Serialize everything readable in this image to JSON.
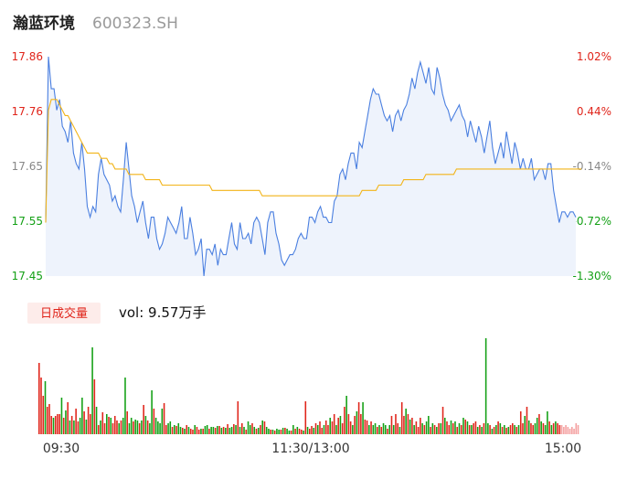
{
  "header": {
    "name": "瀚蓝环境",
    "code": "600323.SH"
  },
  "volume_panel": {
    "badge": "日成交量",
    "summary": "vol: 9.57万手"
  },
  "colors": {
    "price_line": "#4a7fe0",
    "avg_line": "#f2b418",
    "area_fill": "#eef3fc",
    "up": "#e0251b",
    "down": "#13a015",
    "flat": "#888888",
    "badge_bg": "#fdecea"
  },
  "chart_data": [
    {
      "type": "line",
      "title": "",
      "x_ticks": [
        "09:30",
        "11:30/13:00",
        "15:00"
      ],
      "y_ticks_left": [
        "17.86",
        "17.76",
        "17.65",
        "17.55",
        "17.45"
      ],
      "y_ticks_right": [
        "1.02%",
        "0.44%",
        "-0.14%",
        "-0.72%",
        "-1.30%"
      ],
      "ylim": [
        17.45,
        17.86
      ],
      "prev_close": 17.675,
      "series": [
        {
          "role": "price",
          "values": [
            17.55,
            17.86,
            17.8,
            17.8,
            17.76,
            17.78,
            17.73,
            17.72,
            17.7,
            17.74,
            17.68,
            17.66,
            17.65,
            17.7,
            17.65,
            17.58,
            17.56,
            17.58,
            17.57,
            17.64,
            17.67,
            17.64,
            17.63,
            17.62,
            17.59,
            17.6,
            17.58,
            17.57,
            17.63,
            17.7,
            17.65,
            17.6,
            17.58,
            17.55,
            17.57,
            17.59,
            17.55,
            17.52,
            17.56,
            17.56,
            17.52,
            17.5,
            17.51,
            17.53,
            17.56,
            17.55,
            17.54,
            17.53,
            17.55,
            17.58,
            17.52,
            17.52,
            17.56,
            17.53,
            17.49,
            17.5,
            17.52,
            17.45,
            17.5,
            17.5,
            17.49,
            17.51,
            17.47,
            17.5,
            17.49,
            17.49,
            17.52,
            17.55,
            17.51,
            17.5,
            17.55,
            17.52,
            17.52,
            17.53,
            17.51,
            17.55,
            17.56,
            17.55,
            17.52,
            17.49,
            17.55,
            17.57,
            17.57,
            17.53,
            17.51,
            17.48,
            17.47,
            17.48,
            17.49,
            17.49,
            17.5,
            17.52,
            17.53,
            17.52,
            17.52,
            17.56,
            17.56,
            17.55,
            17.57,
            17.58,
            17.56,
            17.56,
            17.55,
            17.55,
            17.59,
            17.6,
            17.64,
            17.65,
            17.63,
            17.66,
            17.68,
            17.68,
            17.65,
            17.7,
            17.69,
            17.72,
            17.75,
            17.78,
            17.8,
            17.79,
            17.79,
            17.77,
            17.75,
            17.74,
            17.75,
            17.72,
            17.75,
            17.76,
            17.74,
            17.76,
            17.77,
            17.79,
            17.82,
            17.8,
            17.83,
            17.85,
            17.83,
            17.81,
            17.84,
            17.8,
            17.79,
            17.84,
            17.82,
            17.79,
            17.77,
            17.76,
            17.74,
            17.75,
            17.76,
            17.77,
            17.75,
            17.74,
            17.71,
            17.74,
            17.72,
            17.7,
            17.73,
            17.71,
            17.68,
            17.71,
            17.74,
            17.69,
            17.66,
            17.68,
            17.7,
            17.67,
            17.72,
            17.69,
            17.66,
            17.7,
            17.68,
            17.65,
            17.67,
            17.65,
            17.65,
            17.67,
            17.63,
            17.64,
            17.65,
            17.65,
            17.63,
            17.66,
            17.66,
            17.61,
            17.58,
            17.55,
            17.57,
            17.57,
            17.56,
            17.57,
            17.57,
            17.56
          ]
        },
        {
          "role": "average",
          "values": [
            17.55,
            17.76,
            17.78,
            17.78,
            17.78,
            17.77,
            17.76,
            17.75,
            17.75,
            17.74,
            17.73,
            17.72,
            17.71,
            17.7,
            17.69,
            17.68,
            17.68,
            17.68,
            17.68,
            17.68,
            17.67,
            17.67,
            17.67,
            17.66,
            17.66,
            17.65,
            17.65,
            17.65,
            17.65,
            17.65,
            17.64,
            17.64,
            17.64,
            17.64,
            17.64,
            17.64,
            17.63,
            17.63,
            17.63,
            17.63,
            17.63,
            17.63,
            17.62,
            17.62,
            17.62,
            17.62,
            17.62,
            17.62,
            17.62,
            17.62,
            17.62,
            17.62,
            17.62,
            17.62,
            17.62,
            17.62,
            17.62,
            17.62,
            17.62,
            17.62,
            17.61,
            17.61,
            17.61,
            17.61,
            17.61,
            17.61,
            17.61,
            17.61,
            17.61,
            17.61,
            17.61,
            17.61,
            17.61,
            17.61,
            17.61,
            17.61,
            17.61,
            17.61,
            17.6,
            17.6,
            17.6,
            17.6,
            17.6,
            17.6,
            17.6,
            17.6,
            17.6,
            17.6,
            17.6,
            17.6,
            17.6,
            17.6,
            17.6,
            17.6,
            17.6,
            17.6,
            17.6,
            17.6,
            17.6,
            17.6,
            17.6,
            17.6,
            17.6,
            17.6,
            17.6,
            17.6,
            17.6,
            17.6,
            17.6,
            17.6,
            17.6,
            17.6,
            17.6,
            17.6,
            17.61,
            17.61,
            17.61,
            17.61,
            17.61,
            17.61,
            17.62,
            17.62,
            17.62,
            17.62,
            17.62,
            17.62,
            17.62,
            17.62,
            17.62,
            17.63,
            17.63,
            17.63,
            17.63,
            17.63,
            17.63,
            17.63,
            17.63,
            17.64,
            17.64,
            17.64,
            17.64,
            17.64,
            17.64,
            17.64,
            17.64,
            17.64,
            17.64,
            17.64,
            17.65,
            17.65,
            17.65,
            17.65,
            17.65,
            17.65,
            17.65,
            17.65,
            17.65,
            17.65,
            17.65,
            17.65,
            17.65,
            17.65,
            17.65,
            17.65,
            17.65,
            17.65,
            17.65,
            17.65,
            17.65,
            17.65,
            17.65,
            17.65,
            17.65,
            17.65,
            17.65,
            17.65,
            17.65,
            17.65,
            17.65,
            17.65,
            17.65,
            17.65,
            17.65,
            17.65,
            17.65,
            17.65,
            17.65,
            17.65,
            17.65,
            17.65,
            17.65,
            17.65,
            17.65,
            17.65
          ]
        }
      ]
    },
    {
      "type": "bar",
      "title": "",
      "series": [
        {
          "name": "vol",
          "values": [
            0.78,
            0.62,
            0.42,
            0.58,
            0.3,
            0.33,
            0.2,
            0.18,
            0.2,
            0.22,
            0.22,
            0.4,
            0.18,
            0.26,
            0.35,
            0.15,
            0.2,
            0.15,
            0.28,
            0.14,
            0.18,
            0.4,
            0.25,
            0.16,
            0.3,
            0.22,
            0.95,
            0.6,
            0.3,
            0.1,
            0.15,
            0.24,
            0.12,
            0.22,
            0.19,
            0.18,
            0.12,
            0.2,
            0.15,
            0.12,
            0.15,
            0.18,
            0.62,
            0.25,
            0.12,
            0.18,
            0.14,
            0.16,
            0.15,
            0.12,
            0.15,
            0.32,
            0.2,
            0.15,
            0.12,
            0.48,
            0.28,
            0.18,
            0.14,
            0.12,
            0.28,
            0.34,
            0.1,
            0.12,
            0.14,
            0.08,
            0.1,
            0.09,
            0.12,
            0.08,
            0.07,
            0.06,
            0.1,
            0.08,
            0.06,
            0.05,
            0.1,
            0.08,
            0.05,
            0.06,
            0.06,
            0.09,
            0.1,
            0.06,
            0.08,
            0.08,
            0.07,
            0.09,
            0.09,
            0.07,
            0.08,
            0.07,
            0.11,
            0.07,
            0.08,
            0.11,
            0.1,
            0.36,
            0.08,
            0.12,
            0.08,
            0.05,
            0.14,
            0.1,
            0.12,
            0.08,
            0.06,
            0.07,
            0.1,
            0.15,
            0.14,
            0.08,
            0.06,
            0.05,
            0.05,
            0.04,
            0.06,
            0.05,
            0.05,
            0.07,
            0.07,
            0.06,
            0.04,
            0.04,
            0.1,
            0.06,
            0.08,
            0.06,
            0.05,
            0.04,
            0.36,
            0.08,
            0.06,
            0.09,
            0.07,
            0.12,
            0.1,
            0.14,
            0.07,
            0.1,
            0.15,
            0.1,
            0.18,
            0.14,
            0.22,
            0.1,
            0.18,
            0.2,
            0.12,
            0.3,
            0.42,
            0.22,
            0.14,
            0.1,
            0.2,
            0.25,
            0.35,
            0.22,
            0.35,
            0.16,
            0.15,
            0.1,
            0.14,
            0.1,
            0.12,
            0.08,
            0.1,
            0.08,
            0.12,
            0.1,
            0.06,
            0.1,
            0.2,
            0.1,
            0.22,
            0.12,
            0.08,
            0.35,
            0.2,
            0.28,
            0.22,
            0.16,
            0.18,
            0.1,
            0.14,
            0.08,
            0.18,
            0.12,
            0.1,
            0.14,
            0.2,
            0.08,
            0.12,
            0.1,
            0.08,
            0.12,
            0.12,
            0.3,
            0.18,
            0.14,
            0.1,
            0.15,
            0.12,
            0.14,
            0.08,
            0.12,
            0.1,
            0.18,
            0.16,
            0.14,
            0.1,
            0.1,
            0.12,
            0.14,
            0.08,
            0.1,
            0.08,
            0.12,
            1.05,
            0.12,
            0.1,
            0.06,
            0.08,
            0.1,
            0.14,
            0.12,
            0.08,
            0.1,
            0.07,
            0.08,
            0.1,
            0.12,
            0.1,
            0.08,
            0.1,
            0.25,
            0.12,
            0.2,
            0.3,
            0.15,
            0.12,
            0.1,
            0.12,
            0.18,
            0.22,
            0.14,
            0.12,
            0.1,
            0.25,
            0.14,
            0.1,
            0.12,
            0.14,
            0.12,
            0.1,
            0.1,
            0.08,
            0.1,
            0.08,
            0.06,
            0.08,
            0.06,
            0.12,
            0.1
          ]
        }
      ],
      "colors": [
        "r",
        "r",
        "r",
        "g",
        "r",
        "r",
        "r",
        "g",
        "r",
        "r",
        "r",
        "g",
        "r",
        "g",
        "r",
        "g",
        "r",
        "g",
        "r",
        "r",
        "g",
        "g",
        "r",
        "g",
        "r",
        "r",
        "g",
        "r",
        "g",
        "r",
        "g",
        "r",
        "r",
        "g",
        "r",
        "g",
        "r",
        "r",
        "r",
        "g",
        "r",
        "g",
        "g",
        "r",
        "g",
        "g",
        "r",
        "g",
        "g",
        "r",
        "g",
        "r",
        "g",
        "r",
        "g",
        "g",
        "r",
        "g",
        "g",
        "g",
        "g",
        "r",
        "r",
        "g",
        "g",
        "r",
        "g",
        "r",
        "g",
        "g",
        "r",
        "g",
        "r",
        "g",
        "r",
        "r",
        "g",
        "r",
        "r",
        "g",
        "r",
        "g",
        "g",
        "r",
        "g",
        "g",
        "r",
        "g",
        "r",
        "g",
        "r",
        "g",
        "r",
        "g",
        "g",
        "r",
        "g",
        "r",
        "g",
        "r",
        "g",
        "r",
        "g",
        "g",
        "r",
        "g",
        "r",
        "g",
        "r",
        "g",
        "r",
        "g",
        "g",
        "r",
        "g",
        "r",
        "g",
        "g",
        "r",
        "g",
        "r",
        "g",
        "g",
        "r",
        "g",
        "r",
        "g",
        "r",
        "r",
        "g",
        "r",
        "g",
        "r",
        "r",
        "g",
        "r",
        "g",
        "r",
        "r",
        "g",
        "r",
        "r",
        "g",
        "r",
        "r",
        "g",
        "r",
        "g",
        "r",
        "r",
        "g",
        "r",
        "r",
        "g",
        "r",
        "g",
        "r",
        "r",
        "g",
        "r",
        "r",
        "g",
        "r",
        "g",
        "g",
        "r",
        "g",
        "r",
        "g",
        "g",
        "r",
        "g",
        "r",
        "g",
        "r",
        "r",
        "g",
        "r",
        "r",
        "g",
        "r",
        "g",
        "r",
        "g",
        "r",
        "r",
        "r",
        "g",
        "r",
        "g",
        "g",
        "r",
        "g",
        "r",
        "g",
        "r",
        "g",
        "r",
        "g",
        "r",
        "r",
        "g",
        "r",
        "g",
        "r",
        "g",
        "r",
        "g",
        "r",
        "g",
        "r",
        "g",
        "r",
        "r",
        "g",
        "r",
        "g",
        "r",
        "g",
        "g",
        "r",
        "g",
        "r",
        "g",
        "r",
        "g",
        "r",
        "g",
        "r",
        "g",
        "r",
        "r",
        "g",
        "r",
        "g",
        "r",
        "r",
        "g",
        "r",
        "g",
        "r",
        "r",
        "g",
        "g",
        "r",
        "g",
        "r",
        "g",
        "g",
        "r",
        "g",
        "r",
        "g",
        "r",
        "r",
        "f"
      ]
    }
  ]
}
